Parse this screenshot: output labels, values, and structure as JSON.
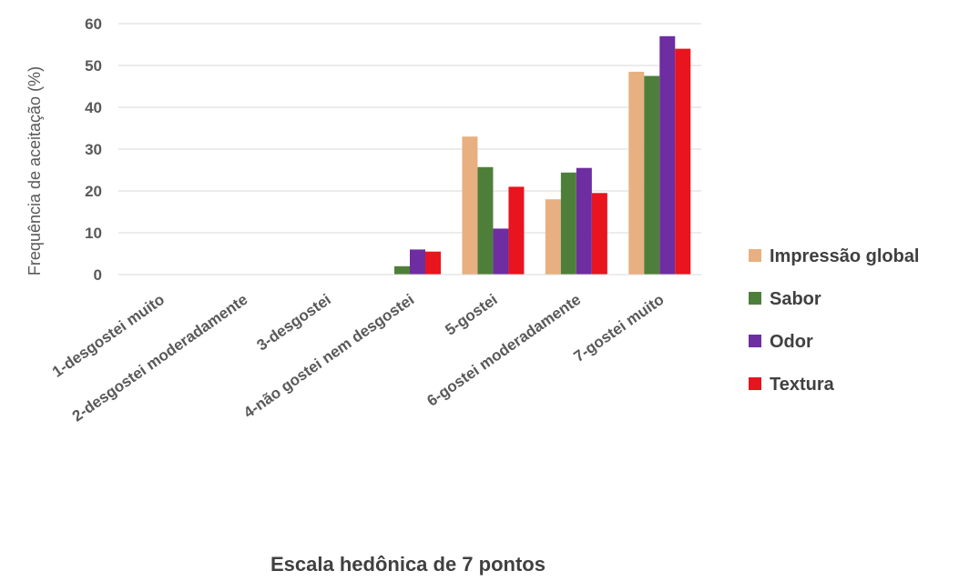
{
  "chart_data": {
    "type": "bar",
    "categories": [
      "1-desgostei muito",
      "2-desgostei moderadamente",
      "3-desgostei",
      "4-não gostei nem desgostei",
      "5-gostei",
      "6-gostei moderadamente",
      "7-gostei muito"
    ],
    "series": [
      {
        "name": "Impressão global",
        "color": "#E8B080",
        "values": [
          0,
          0,
          0,
          0,
          33,
          18,
          48.5
        ]
      },
      {
        "name": "Sabor",
        "color": "#4E7F3A",
        "values": [
          0,
          0,
          0,
          2,
          25.7,
          24.4,
          47.5
        ]
      },
      {
        "name": "Odor",
        "color": "#6E2DA0",
        "values": [
          0,
          0,
          0,
          6,
          11,
          25.5,
          57
        ]
      },
      {
        "name": "Textura",
        "color": "#E8141E",
        "values": [
          0,
          0,
          0,
          5.5,
          21,
          19.5,
          54
        ]
      }
    ],
    "title": "",
    "xlabel": "Escala hedônica de 7 pontos",
    "ylabel": "Frequência de aceitação (%)",
    "ylim": [
      0,
      60
    ],
    "yticks": [
      "0",
      "10",
      "20",
      "30",
      "40",
      "50",
      "60"
    ],
    "grid": true,
    "legend_position": "right"
  }
}
